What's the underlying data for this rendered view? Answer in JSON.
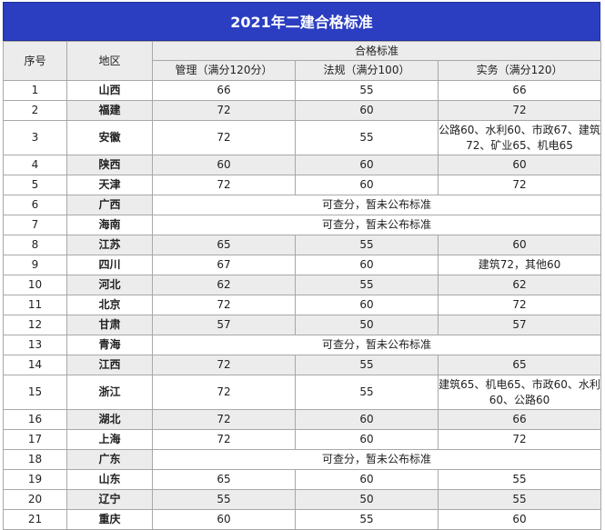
{
  "title": "2021年二建合格标准",
  "headers": {
    "index": "序号",
    "region": "地区",
    "group": "合格标准",
    "mgmt": "管理（满分120分）",
    "law": "法规（满分100）",
    "practice": "实务（满分120）"
  },
  "rows": [
    {
      "n": "1",
      "region": "山西",
      "mgmt": "66",
      "law": "55",
      "practice": "66"
    },
    {
      "n": "2",
      "region": "福建",
      "mgmt": "72",
      "law": "60",
      "practice": "72"
    },
    {
      "n": "3",
      "region": "安徽",
      "mgmt": "72",
      "law": "55",
      "practice": "公路60、水利60、市政67、建筑72、矿业65、机电65"
    },
    {
      "n": "4",
      "region": "陕西",
      "mgmt": "60",
      "law": "60",
      "practice": "60"
    },
    {
      "n": "5",
      "region": "天津",
      "mgmt": "72",
      "law": "60",
      "practice": "72"
    },
    {
      "n": "6",
      "region": "广西",
      "note": "可查分，暂未公布标准"
    },
    {
      "n": "7",
      "region": "海南",
      "note": "可查分，暂未公布标准"
    },
    {
      "n": "8",
      "region": "江苏",
      "mgmt": "65",
      "law": "55",
      "practice": "60"
    },
    {
      "n": "9",
      "region": "四川",
      "mgmt": "67",
      "law": "60",
      "practice": "建筑72，其他60"
    },
    {
      "n": "10",
      "region": "河北",
      "mgmt": "62",
      "law": "55",
      "practice": "62"
    },
    {
      "n": "11",
      "region": "北京",
      "mgmt": "72",
      "law": "60",
      "practice": "72"
    },
    {
      "n": "12",
      "region": "甘肃",
      "mgmt": "57",
      "law": "50",
      "practice": "57"
    },
    {
      "n": "13",
      "region": "青海",
      "note": "可查分，暂未公布标准"
    },
    {
      "n": "14",
      "region": "江西",
      "mgmt": "72",
      "law": "55",
      "practice": "65"
    },
    {
      "n": "15",
      "region": "浙江",
      "mgmt": "72",
      "law": "55",
      "practice": "建筑65、机电65、市政60、水利60、公路60"
    },
    {
      "n": "16",
      "region": "湖北",
      "mgmt": "72",
      "law": "60",
      "practice": "66"
    },
    {
      "n": "17",
      "region": "上海",
      "mgmt": "72",
      "law": "60",
      "practice": "72"
    },
    {
      "n": "18",
      "region": "广东",
      "note": "可查分，暂未公布标准"
    },
    {
      "n": "19",
      "region": "山东",
      "mgmt": "65",
      "law": "60",
      "practice": "55"
    },
    {
      "n": "20",
      "region": "辽宁",
      "mgmt": "55",
      "law": "50",
      "practice": "55"
    },
    {
      "n": "21",
      "region": "重庆",
      "mgmt": "60",
      "law": "55",
      "practice": "60"
    }
  ]
}
